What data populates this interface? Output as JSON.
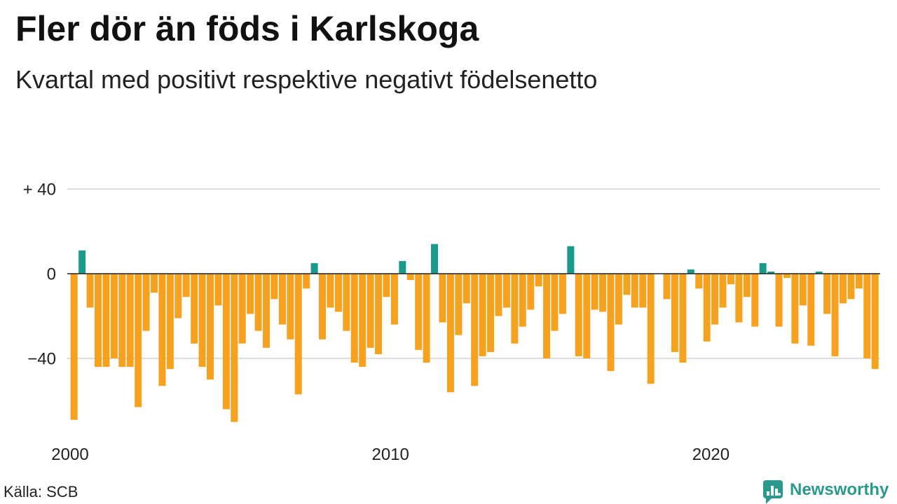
{
  "source": "Källa: SCB",
  "logo": {
    "text": "Newsworthy",
    "icon": "chart-speech-bubble-icon",
    "color": "#2a9a8e"
  },
  "colors": {
    "positive": "#1a9a8b",
    "negative": "#f6a21e",
    "gridline": "#dddddd",
    "zero_line": "#222222"
  },
  "chart_data": {
    "type": "bar",
    "title": "Fler dör än föds i Karlskoga",
    "subtitle": "Kvartal med positivt respektive negativt födelsenetto",
    "xlabel": "",
    "ylabel": "",
    "grid": true,
    "legend": "none",
    "ylim": [
      -70,
      40
    ],
    "y_ticks": [
      {
        "value": 40,
        "label": "+ 40"
      },
      {
        "value": 0,
        "label": "0"
      },
      {
        "value": -40,
        "label": "−40"
      }
    ],
    "x_ticks": [
      "2000",
      "2010",
      "2020"
    ],
    "x": [
      "2000-Q1",
      "2000-Q2",
      "2000-Q3",
      "2000-Q4",
      "2001-Q1",
      "2001-Q2",
      "2001-Q3",
      "2001-Q4",
      "2002-Q1",
      "2002-Q2",
      "2002-Q3",
      "2002-Q4",
      "2003-Q1",
      "2003-Q2",
      "2003-Q3",
      "2003-Q4",
      "2004-Q1",
      "2004-Q2",
      "2004-Q3",
      "2004-Q4",
      "2005-Q1",
      "2005-Q2",
      "2005-Q3",
      "2005-Q4",
      "2006-Q1",
      "2006-Q2",
      "2006-Q3",
      "2006-Q4",
      "2007-Q1",
      "2007-Q2",
      "2007-Q3",
      "2007-Q4",
      "2008-Q1",
      "2008-Q2",
      "2008-Q3",
      "2008-Q4",
      "2009-Q1",
      "2009-Q2",
      "2009-Q3",
      "2009-Q4",
      "2010-Q1",
      "2010-Q2",
      "2010-Q3",
      "2010-Q4",
      "2011-Q1",
      "2011-Q2",
      "2011-Q3",
      "2011-Q4",
      "2012-Q1",
      "2012-Q2",
      "2012-Q3",
      "2012-Q4",
      "2013-Q1",
      "2013-Q2",
      "2013-Q3",
      "2013-Q4",
      "2014-Q1",
      "2014-Q2",
      "2014-Q3",
      "2014-Q4",
      "2015-Q1",
      "2015-Q2",
      "2015-Q3",
      "2015-Q4",
      "2016-Q1",
      "2016-Q2",
      "2016-Q3",
      "2016-Q4",
      "2017-Q1",
      "2017-Q2",
      "2017-Q3",
      "2017-Q4",
      "2018-Q1",
      "2018-Q2",
      "2018-Q3",
      "2018-Q4",
      "2019-Q1",
      "2019-Q2",
      "2019-Q3",
      "2019-Q4",
      "2020-Q1",
      "2020-Q2",
      "2020-Q3",
      "2020-Q4",
      "2021-Q1",
      "2021-Q2",
      "2021-Q3",
      "2021-Q4",
      "2022-Q1",
      "2022-Q2",
      "2022-Q3",
      "2022-Q4",
      "2023-Q1",
      "2023-Q2",
      "2023-Q3",
      "2023-Q4",
      "2024-Q1",
      "2024-Q2",
      "2024-Q3",
      "2024-Q4",
      "2025-Q1"
    ],
    "values": [
      -69,
      11,
      -16,
      -44,
      -44,
      -40,
      -44,
      -44,
      -63,
      -27,
      -9,
      -53,
      -45,
      -21,
      -11,
      -33,
      -44,
      -50,
      -15,
      -64,
      -70,
      -33,
      -19,
      -27,
      -35,
      -12,
      -24,
      -31,
      -57,
      -7,
      5,
      -31,
      -16,
      -18,
      -27,
      -42,
      -44,
      -35,
      -38,
      -11,
      -24,
      6,
      -3,
      -36,
      -42,
      14,
      -23,
      -56,
      -29,
      -14,
      -53,
      -39,
      -37,
      -20,
      -16,
      -33,
      -25,
      -17,
      -6,
      -40,
      -27,
      -19,
      13,
      -39,
      -40,
      -17,
      -18,
      -46,
      -24,
      -10,
      -16,
      -16,
      -52,
      0,
      -12,
      -37,
      -42,
      2,
      -7,
      -32,
      -24,
      -16,
      -5,
      -23,
      -11,
      -25,
      5,
      1,
      -25,
      -2,
      -33,
      -15,
      -34,
      1,
      -19,
      -39,
      -14,
      -12,
      -7,
      -40,
      -45
    ]
  }
}
